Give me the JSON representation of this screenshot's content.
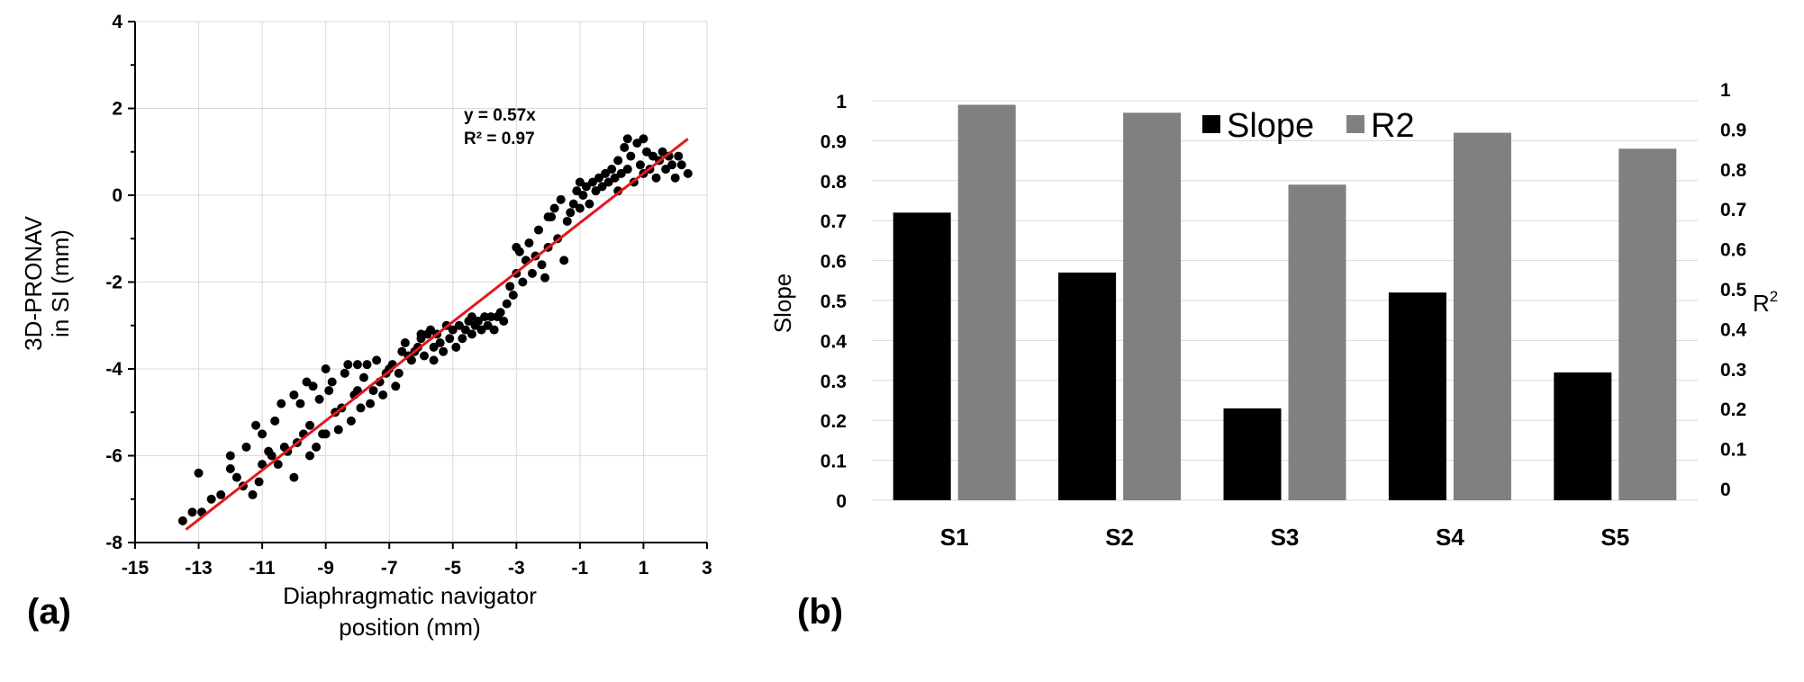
{
  "panels": {
    "a_label": "(a)",
    "b_label": "(b)"
  },
  "chart_data": [
    {
      "type": "scatter",
      "xlabel_line1": "Diaphragmatic navigator",
      "xlabel_line2": "position (mm)",
      "ylabel_line1": "3D-PRONAV",
      "ylabel_line2": "in SI (mm)",
      "xlim": [
        -15,
        3
      ],
      "ylim": [
        -8,
        4
      ],
      "x_ticks": [
        -15,
        -13,
        -11,
        -9,
        -7,
        -5,
        -3,
        -1,
        1,
        3
      ],
      "y_ticks": [
        -8,
        -6,
        -4,
        -2,
        0,
        2,
        4
      ],
      "grid": true,
      "point_color": "#000000",
      "trendline": {
        "equation": "y = 0.57x",
        "r2_label": "R² = 0.97",
        "slope": 0.57,
        "intercept": 0,
        "x_range": [
          -13.4,
          2.4
        ],
        "color": "#e0191c"
      },
      "points": [
        [
          -13.5,
          -7.5
        ],
        [
          -13.2,
          -7.3
        ],
        [
          -12.9,
          -7.3
        ],
        [
          -13,
          -6.4
        ],
        [
          -12.6,
          -7.0
        ],
        [
          -12.3,
          -6.9
        ],
        [
          -12.0,
          -6.3
        ],
        [
          -11.8,
          -6.5
        ],
        [
          -11.6,
          -6.7
        ],
        [
          -11.5,
          -5.8
        ],
        [
          -11.3,
          -6.9
        ],
        [
          -11.1,
          -6.6
        ],
        [
          -11.0,
          -6.2
        ],
        [
          -11.0,
          -5.5
        ],
        [
          -10.8,
          -5.9
        ],
        [
          -10.7,
          -6.0
        ],
        [
          -10.6,
          -5.2
        ],
        [
          -10.5,
          -6.2
        ],
        [
          -10.3,
          -5.8
        ],
        [
          -10.2,
          -5.9
        ],
        [
          -10.0,
          -4.6
        ],
        [
          -10.0,
          -6.5
        ],
        [
          -9.9,
          -5.7
        ],
        [
          -9.8,
          -4.8
        ],
        [
          -9.7,
          -5.5
        ],
        [
          -9.6,
          -4.3
        ],
        [
          -9.5,
          -5.3
        ],
        [
          -9.5,
          -6.0
        ],
        [
          -9.4,
          -4.4
        ],
        [
          -9.3,
          -5.8
        ],
        [
          -9.2,
          -4.7
        ],
        [
          -9.1,
          -5.5
        ],
        [
          -9.0,
          -5.5
        ],
        [
          -8.9,
          -4.5
        ],
        [
          -8.8,
          -4.3
        ],
        [
          -8.7,
          -5.0
        ],
        [
          -8.6,
          -5.4
        ],
        [
          -8.5,
          -4.9
        ],
        [
          -8.4,
          -4.1
        ],
        [
          -8.3,
          -3.9
        ],
        [
          -8.2,
          -5.2
        ],
        [
          -8.1,
          -4.6
        ],
        [
          -8.0,
          -4.5
        ],
        [
          -7.9,
          -4.9
        ],
        [
          -7.8,
          -4.2
        ],
        [
          -7.7,
          -3.9
        ],
        [
          -7.6,
          -4.8
        ],
        [
          -7.5,
          -4.5
        ],
        [
          -7.4,
          -3.8
        ],
        [
          -7.3,
          -4.3
        ],
        [
          -7.2,
          -4.6
        ],
        [
          -7.1,
          -4.1
        ],
        [
          -7.0,
          -4.0
        ],
        [
          -6.9,
          -3.9
        ],
        [
          -6.8,
          -4.4
        ],
        [
          -6.7,
          -4.1
        ],
        [
          -6.6,
          -3.6
        ],
        [
          -6.5,
          -3.4
        ],
        [
          -6.4,
          -3.7
        ],
        [
          -6.3,
          -3.8
        ],
        [
          -6.2,
          -3.6
        ],
        [
          -6.1,
          -3.5
        ],
        [
          -6.0,
          -3.3
        ],
        [
          -5.9,
          -3.7
        ],
        [
          -5.8,
          -3.2
        ],
        [
          -5.7,
          -3.1
        ],
        [
          -5.6,
          -3.8
        ],
        [
          -5.5,
          -3.2
        ],
        [
          -5.4,
          -3.4
        ],
        [
          -5.3,
          -3.6
        ],
        [
          -5.2,
          -3.0
        ],
        [
          -5.1,
          -3.3
        ],
        [
          -5.0,
          -3.1
        ],
        [
          -4.9,
          -3.5
        ],
        [
          -4.8,
          -3.0
        ],
        [
          -4.7,
          -3.3
        ],
        [
          -4.6,
          -3.1
        ],
        [
          -4.5,
          -2.9
        ],
        [
          -4.4,
          -3.2
        ],
        [
          -4.3,
          -3.0
        ],
        [
          -4.2,
          -2.9
        ],
        [
          -4.1,
          -3.1
        ],
        [
          -4.0,
          -2.8
        ],
        [
          -3.9,
          -3.0
        ],
        [
          -3.8,
          -2.8
        ],
        [
          -3.7,
          -3.1
        ],
        [
          -3.6,
          -2.8
        ],
        [
          -3.5,
          -2.7
        ],
        [
          -3.4,
          -2.9
        ],
        [
          -3.3,
          -2.5
        ],
        [
          -3.2,
          -2.1
        ],
        [
          -3.1,
          -2.3
        ],
        [
          -3.0,
          -1.8
        ],
        [
          -3.0,
          -1.2
        ],
        [
          -2.9,
          -1.3
        ],
        [
          -2.8,
          -2.0
        ],
        [
          -2.7,
          -1.5
        ],
        [
          -2.6,
          -1.1
        ],
        [
          -2.5,
          -1.8
        ],
        [
          -2.4,
          -1.4
        ],
        [
          -2.3,
          -0.8
        ],
        [
          -2.2,
          -1.6
        ],
        [
          -2.1,
          -1.9
        ],
        [
          -2.0,
          -1.2
        ],
        [
          -1.9,
          -0.5
        ],
        [
          -1.8,
          -0.3
        ],
        [
          -1.7,
          -1.0
        ],
        [
          -1.6,
          -0.1
        ],
        [
          -1.5,
          -1.5
        ],
        [
          -1.4,
          -0.6
        ],
        [
          -1.3,
          -0.4
        ],
        [
          -1.2,
          -0.2
        ],
        [
          -1.1,
          0.1
        ],
        [
          -1.0,
          -0.3
        ],
        [
          -0.9,
          0.0
        ],
        [
          -0.8,
          0.2
        ],
        [
          -0.7,
          -0.2
        ],
        [
          -0.6,
          0.3
        ],
        [
          -0.5,
          0.1
        ],
        [
          -0.4,
          0.4
        ],
        [
          -0.3,
          0.2
        ],
        [
          -0.2,
          0.5
        ],
        [
          -0.1,
          0.3
        ],
        [
          0.0,
          0.6
        ],
        [
          0.1,
          0.4
        ],
        [
          0.2,
          0.8
        ],
        [
          0.3,
          0.5
        ],
        [
          0.4,
          1.1
        ],
        [
          0.5,
          0.6
        ],
        [
          0.6,
          0.9
        ],
        [
          0.7,
          0.3
        ],
        [
          0.8,
          1.2
        ],
        [
          0.9,
          0.7
        ],
        [
          1.0,
          0.5
        ],
        [
          1.1,
          1.0
        ],
        [
          1.2,
          0.6
        ],
        [
          1.3,
          0.9
        ],
        [
          1.4,
          0.4
        ],
        [
          1.5,
          0.8
        ],
        [
          1.6,
          1.0
        ],
        [
          1.7,
          0.6
        ],
        [
          1.8,
          0.9
        ],
        [
          1.9,
          0.7
        ],
        [
          2.0,
          0.4
        ],
        [
          2.1,
          0.9
        ],
        [
          2.2,
          0.7
        ],
        [
          2.4,
          0.5
        ],
        [
          0.5,
          1.3
        ],
        [
          1.0,
          1.3
        ],
        [
          0.2,
          0.1
        ],
        [
          -12.0,
          -6.0
        ],
        [
          -11.2,
          -5.3
        ],
        [
          -10.4,
          -4.8
        ],
        [
          -9.0,
          -4.0
        ],
        [
          -8.0,
          -3.9
        ],
        [
          -6.0,
          -3.2
        ],
        [
          -5.6,
          -3.5
        ],
        [
          -4.4,
          -2.8
        ],
        [
          -2.0,
          -0.5
        ],
        [
          -1.0,
          0.3
        ]
      ]
    },
    {
      "type": "bar",
      "categories": [
        "S1",
        "S2",
        "S3",
        "S4",
        "S5"
      ],
      "ylabel": "Slope",
      "y2label": "R",
      "y2label_sup": "2",
      "ylim": [
        0,
        1
      ],
      "y_ticks": [
        "0",
        "0.1",
        "0.2",
        "0.3",
        "0.4",
        "0.5",
        "0.6",
        "0.7",
        "0.8",
        "0.9",
        "1"
      ],
      "legend_position": "top",
      "series": [
        {
          "name": "Slope",
          "values": [
            0.72,
            0.57,
            0.23,
            0.52,
            0.32
          ],
          "color": "#000000"
        },
        {
          "name": "R2",
          "values": [
            0.99,
            0.97,
            0.79,
            0.92,
            0.88
          ],
          "color": "#808080"
        }
      ]
    }
  ]
}
